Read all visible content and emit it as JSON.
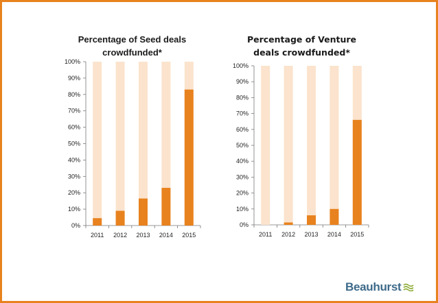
{
  "colors": {
    "border": "#e8821e",
    "bar": "#e8821e",
    "bar_bg": "#fbe3cd",
    "logo_text": "#3d6a8a",
    "logo_mark": "#8fae3a"
  },
  "chart_data": [
    {
      "type": "bar",
      "title": "Percentage of Seed deals crowdfunded*",
      "categories": [
        "2011",
        "2012",
        "2013",
        "2014",
        "2015"
      ],
      "values": [
        4.5,
        9,
        16.5,
        23,
        83
      ],
      "background_values": [
        100,
        100,
        100,
        100,
        100
      ],
      "ylim": [
        0,
        100
      ],
      "yticks": [
        "0%",
        "10%",
        "20%",
        "30%",
        "40%",
        "50%",
        "60%",
        "70%",
        "80%",
        "90%",
        "100%"
      ],
      "xlabel": "",
      "ylabel": "",
      "grid": false
    },
    {
      "type": "bar",
      "title": "Percentage of Venture deals crowdfunded*",
      "categories": [
        "2011",
        "2012",
        "2013",
        "2014",
        "2015"
      ],
      "values": [
        0,
        1.5,
        6,
        10,
        66
      ],
      "background_values": [
        100,
        100,
        100,
        100,
        100
      ],
      "ylim": [
        0,
        100
      ],
      "yticks": [
        "0%",
        "10%",
        "20%",
        "30%",
        "40%",
        "50%",
        "60%",
        "70%",
        "80%",
        "90%",
        "100%"
      ],
      "xlabel": "",
      "ylabel": "",
      "grid": false
    }
  ],
  "logo": {
    "text": "Beauhurst",
    "icon": "wave-lines-icon"
  }
}
